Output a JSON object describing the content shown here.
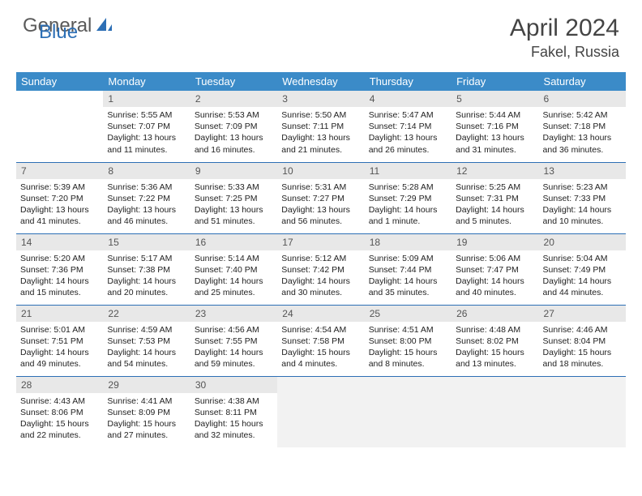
{
  "logo": {
    "general": "General",
    "blue": "Blue"
  },
  "title": "April 2024",
  "location": "Fakel, Russia",
  "header_bg": "#3b8bc8",
  "accent": "#2d6fb5",
  "daynum_bg": "#e8e8e8",
  "weekdays": [
    "Sunday",
    "Monday",
    "Tuesday",
    "Wednesday",
    "Thursday",
    "Friday",
    "Saturday"
  ],
  "weeks": [
    [
      null,
      {
        "n": "1",
        "sr": "5:55 AM",
        "ss": "7:07 PM",
        "dl": "13 hours and 11 minutes."
      },
      {
        "n": "2",
        "sr": "5:53 AM",
        "ss": "7:09 PM",
        "dl": "13 hours and 16 minutes."
      },
      {
        "n": "3",
        "sr": "5:50 AM",
        "ss": "7:11 PM",
        "dl": "13 hours and 21 minutes."
      },
      {
        "n": "4",
        "sr": "5:47 AM",
        "ss": "7:14 PM",
        "dl": "13 hours and 26 minutes."
      },
      {
        "n": "5",
        "sr": "5:44 AM",
        "ss": "7:16 PM",
        "dl": "13 hours and 31 minutes."
      },
      {
        "n": "6",
        "sr": "5:42 AM",
        "ss": "7:18 PM",
        "dl": "13 hours and 36 minutes."
      }
    ],
    [
      {
        "n": "7",
        "sr": "5:39 AM",
        "ss": "7:20 PM",
        "dl": "13 hours and 41 minutes."
      },
      {
        "n": "8",
        "sr": "5:36 AM",
        "ss": "7:22 PM",
        "dl": "13 hours and 46 minutes."
      },
      {
        "n": "9",
        "sr": "5:33 AM",
        "ss": "7:25 PM",
        "dl": "13 hours and 51 minutes."
      },
      {
        "n": "10",
        "sr": "5:31 AM",
        "ss": "7:27 PM",
        "dl": "13 hours and 56 minutes."
      },
      {
        "n": "11",
        "sr": "5:28 AM",
        "ss": "7:29 PM",
        "dl": "14 hours and 1 minute."
      },
      {
        "n": "12",
        "sr": "5:25 AM",
        "ss": "7:31 PM",
        "dl": "14 hours and 5 minutes."
      },
      {
        "n": "13",
        "sr": "5:23 AM",
        "ss": "7:33 PM",
        "dl": "14 hours and 10 minutes."
      }
    ],
    [
      {
        "n": "14",
        "sr": "5:20 AM",
        "ss": "7:36 PM",
        "dl": "14 hours and 15 minutes."
      },
      {
        "n": "15",
        "sr": "5:17 AM",
        "ss": "7:38 PM",
        "dl": "14 hours and 20 minutes."
      },
      {
        "n": "16",
        "sr": "5:14 AM",
        "ss": "7:40 PM",
        "dl": "14 hours and 25 minutes."
      },
      {
        "n": "17",
        "sr": "5:12 AM",
        "ss": "7:42 PM",
        "dl": "14 hours and 30 minutes."
      },
      {
        "n": "18",
        "sr": "5:09 AM",
        "ss": "7:44 PM",
        "dl": "14 hours and 35 minutes."
      },
      {
        "n": "19",
        "sr": "5:06 AM",
        "ss": "7:47 PM",
        "dl": "14 hours and 40 minutes."
      },
      {
        "n": "20",
        "sr": "5:04 AM",
        "ss": "7:49 PM",
        "dl": "14 hours and 44 minutes."
      }
    ],
    [
      {
        "n": "21",
        "sr": "5:01 AM",
        "ss": "7:51 PM",
        "dl": "14 hours and 49 minutes."
      },
      {
        "n": "22",
        "sr": "4:59 AM",
        "ss": "7:53 PM",
        "dl": "14 hours and 54 minutes."
      },
      {
        "n": "23",
        "sr": "4:56 AM",
        "ss": "7:55 PM",
        "dl": "14 hours and 59 minutes."
      },
      {
        "n": "24",
        "sr": "4:54 AM",
        "ss": "7:58 PM",
        "dl": "15 hours and 4 minutes."
      },
      {
        "n": "25",
        "sr": "4:51 AM",
        "ss": "8:00 PM",
        "dl": "15 hours and 8 minutes."
      },
      {
        "n": "26",
        "sr": "4:48 AM",
        "ss": "8:02 PM",
        "dl": "15 hours and 13 minutes."
      },
      {
        "n": "27",
        "sr": "4:46 AM",
        "ss": "8:04 PM",
        "dl": "15 hours and 18 minutes."
      }
    ],
    [
      {
        "n": "28",
        "sr": "4:43 AM",
        "ss": "8:06 PM",
        "dl": "15 hours and 22 minutes."
      },
      {
        "n": "29",
        "sr": "4:41 AM",
        "ss": "8:09 PM",
        "dl": "15 hours and 27 minutes."
      },
      {
        "n": "30",
        "sr": "4:38 AM",
        "ss": "8:11 PM",
        "dl": "15 hours and 32 minutes."
      },
      {
        "trailing": true
      },
      {
        "trailing": true
      },
      {
        "trailing": true
      },
      {
        "trailing": true
      }
    ]
  ],
  "labels": {
    "sunrise": "Sunrise: ",
    "sunset": "Sunset: ",
    "daylight": "Daylight: "
  }
}
